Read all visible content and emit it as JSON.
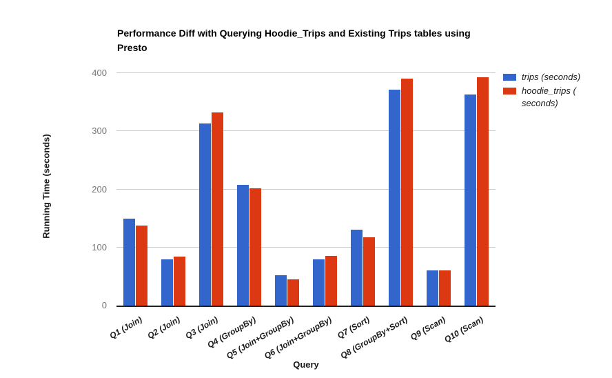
{
  "chart_data": {
    "type": "bar",
    "title": "Performance Diff with Querying Hoodie_Trips and Existing Trips tables using Presto",
    "xlabel": "Query",
    "ylabel": "Running Time (seconds)",
    "ylim": [
      0,
      400
    ],
    "yticks": [
      0,
      100,
      200,
      300,
      400
    ],
    "grid": true,
    "legend_position": "right",
    "background_color": "#ffffff",
    "gridline_color": "#cccccc",
    "baseline_color": "#212121",
    "tick_label_color": "#757575",
    "categories": [
      "Q1 (Join)",
      "Q2 (Join)",
      "Q3 (Join)",
      "Q4 (GroupBy)",
      "Q5 (Join+GroupBy)",
      "Q6 (Join+GroupBy)",
      "Q7 (Sort)",
      "Q8 (GroupBy+Sort)",
      "Q9 (Scan)",
      "Q10 (Scan)"
    ],
    "series": [
      {
        "name": "trips (seconds)",
        "color": "#3366CC",
        "values": [
          150,
          80,
          313,
          208,
          52,
          80,
          131,
          371,
          61,
          363
        ]
      },
      {
        "name": "hoodie_trips ( seconds)",
        "color": "#DC3912",
        "values": [
          138,
          84,
          332,
          202,
          45,
          85,
          117,
          390,
          60,
          393
        ]
      }
    ]
  }
}
